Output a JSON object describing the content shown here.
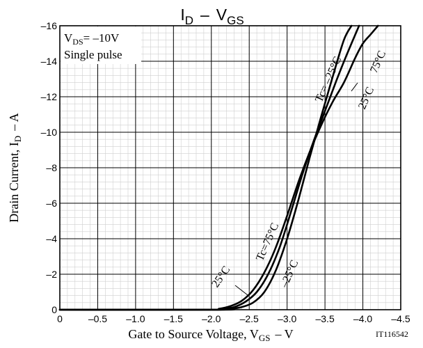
{
  "chart_data": {
    "type": "line",
    "title": {
      "main": "I",
      "sub1": "D",
      "dash": "–",
      "main2": "V",
      "sub2": "GS"
    },
    "xlabel": {
      "main": "Gate to Source Voltage, V",
      "sub": "GS",
      "unit": "–  V"
    },
    "ylabel": {
      "main": "Drain Current, I",
      "sub": "D",
      "unit": "–  A"
    },
    "xlim": [
      0,
      -4.5
    ],
    "ylim": [
      0,
      -16
    ],
    "x_ticks": [
      0,
      -0.5,
      -1.0,
      -1.5,
      -2.0,
      -2.5,
      -3.0,
      -3.5,
      -4.0,
      -4.5
    ],
    "x_tick_labels": [
      "0",
      "–0.5",
      "–1.0",
      "–1.5",
      "–2.0",
      "–2.5",
      "–3.0",
      "–3.5",
      "–4.0",
      "–4.5"
    ],
    "y_ticks": [
      0,
      -2,
      -4,
      -6,
      -8,
      -10,
      -12,
      -14,
      -16
    ],
    "y_tick_labels": [
      "0",
      "–2",
      "–4",
      "–6",
      "–8",
      "–10",
      "–12",
      "–14",
      "–16"
    ],
    "x_minor_step": 0.1,
    "y_minor_step": 0.4,
    "grid": true,
    "conditions": {
      "line1_pre": "V",
      "line1_sub": "DS",
      "line1_post": "= –10V",
      "line2": "Single pulse"
    },
    "series": [
      {
        "name": "Tc=75°C",
        "x": [
          0,
          -1.95,
          -2.1,
          -2.25,
          -2.4,
          -2.55,
          -2.7,
          -2.85,
          -3.0,
          -3.15,
          -3.3,
          -3.45,
          -3.6,
          -3.75,
          -3.9,
          -4.0,
          -4.1,
          -4.2
        ],
        "y": [
          0,
          0,
          -0.05,
          -0.2,
          -0.5,
          -1.1,
          -2.1,
          -3.5,
          -5.3,
          -7.2,
          -8.9,
          -10.4,
          -11.7,
          -12.8,
          -14.2,
          -15.0,
          -15.5,
          -16.0
        ]
      },
      {
        "name": "25°C",
        "x": [
          0,
          -2.0,
          -2.15,
          -2.3,
          -2.45,
          -2.6,
          -2.75,
          -2.9,
          -3.05,
          -3.2,
          -3.35,
          -3.5,
          -3.65,
          -3.8,
          -3.95
        ],
        "y": [
          0,
          0,
          -0.05,
          -0.15,
          -0.45,
          -1.0,
          -2.0,
          -3.5,
          -5.5,
          -7.6,
          -9.5,
          -11.2,
          -12.9,
          -14.5,
          -16.0
        ]
      },
      {
        "name": "Tc= –25°C",
        "x": [
          0,
          -2.1,
          -2.25,
          -2.4,
          -2.55,
          -2.7,
          -2.85,
          -3.0,
          -3.15,
          -3.3,
          -3.45,
          -3.6,
          -3.75,
          -3.85
        ],
        "y": [
          0,
          0,
          -0.05,
          -0.15,
          -0.4,
          -1.0,
          -2.2,
          -4.0,
          -6.2,
          -8.6,
          -10.9,
          -13.1,
          -15.2,
          -16.0
        ]
      }
    ],
    "curve_labels": [
      {
        "series": "Tc= –25°C",
        "text": "Tc= –25°C",
        "position": "upper"
      },
      {
        "series": "25°C",
        "text": "25°C",
        "position": "upper"
      },
      {
        "series": "Tc=75°C",
        "text": "75°C",
        "position": "upper"
      },
      {
        "series": "Tc=75°C",
        "text": "Tc=75°C",
        "position": "lower"
      },
      {
        "series": "25°C",
        "text": "25°C",
        "position": "lower"
      },
      {
        "series": "Tc= –25°C",
        "text": "–25°C",
        "position": "lower"
      }
    ],
    "footnote": "IT116542"
  }
}
